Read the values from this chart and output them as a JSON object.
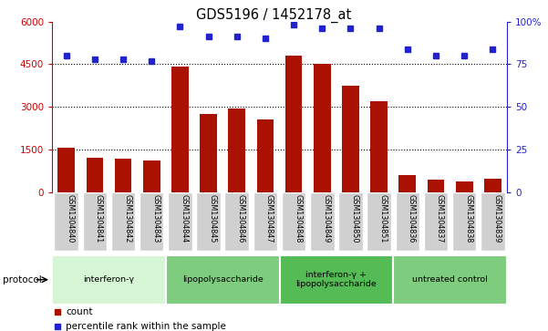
{
  "title": "GDS5196 / 1452178_at",
  "samples": [
    "GSM1304840",
    "GSM1304841",
    "GSM1304842",
    "GSM1304843",
    "GSM1304844",
    "GSM1304845",
    "GSM1304846",
    "GSM1304847",
    "GSM1304848",
    "GSM1304849",
    "GSM1304850",
    "GSM1304851",
    "GSM1304836",
    "GSM1304837",
    "GSM1304838",
    "GSM1304839"
  ],
  "counts": [
    1550,
    1200,
    1180,
    1100,
    4400,
    2750,
    2950,
    2550,
    4800,
    4500,
    3750,
    3200,
    580,
    420,
    370,
    480
  ],
  "percentile": [
    80,
    78,
    78,
    77,
    97,
    91,
    91,
    90,
    98,
    96,
    96,
    96,
    84,
    80,
    80,
    84
  ],
  "groups": [
    {
      "label": "interferon-γ",
      "start": 0,
      "end": 4,
      "color": "#d5f5d5"
    },
    {
      "label": "lipopolysaccharide",
      "start": 4,
      "end": 8,
      "color": "#7ecc7e"
    },
    {
      "label": "interferon-γ +\nlipopolysaccharide",
      "start": 8,
      "end": 12,
      "color": "#55bb55"
    },
    {
      "label": "untreated control",
      "start": 12,
      "end": 16,
      "color": "#7ecc7e"
    }
  ],
  "bar_color": "#aa1100",
  "dot_color": "#2222cc",
  "left_ylim": [
    0,
    6000
  ],
  "right_ylim": [
    0,
    100
  ],
  "left_yticks": [
    0,
    1500,
    3000,
    4500,
    6000
  ],
  "right_yticks": [
    0,
    25,
    50,
    75,
    100
  ],
  "right_yticklabels": [
    "0",
    "25",
    "50",
    "75",
    "100%"
  ],
  "grid_values": [
    1500,
    3000,
    4500
  ],
  "protocol_label": "protocol",
  "legend_count_label": "count",
  "legend_pct_label": "percentile rank within the sample",
  "tick_box_color": "#d0d0d0"
}
